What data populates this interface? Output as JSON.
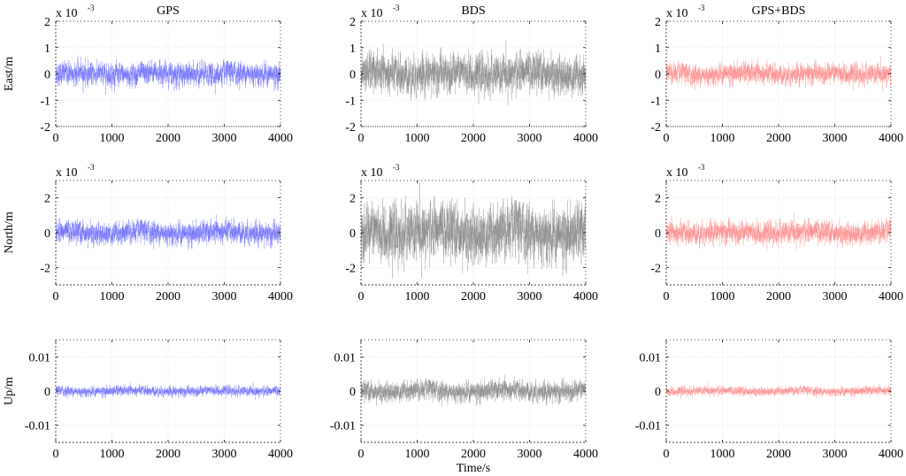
{
  "chart_data": {
    "type": "line",
    "xlabel": "Time/s",
    "columns": [
      {
        "title": "GPS",
        "color": "#6f6fff"
      },
      {
        "title": "BDS",
        "color": "#8a8a8a"
      },
      {
        "title": "GPS+BDS",
        "color": "#ff8c8c"
      }
    ],
    "rows": [
      {
        "ylabel": "East/m",
        "ylim": [
          -0.002,
          0.002
        ],
        "exponent_label": "x 10",
        "exponent": "-3",
        "yticks": [
          -0.002,
          -0.001,
          0,
          0.001,
          0.002
        ],
        "ytick_labels": [
          "-2",
          "-1",
          "0",
          "1",
          "2"
        ],
        "noise_std": [
          0.00027,
          0.00045,
          0.00024
        ]
      },
      {
        "ylabel": "North/m",
        "ylim": [
          -0.003,
          0.003
        ],
        "exponent_label": "x 10",
        "exponent": "-3",
        "yticks": [
          -0.002,
          0,
          0.002
        ],
        "ytick_labels": [
          "-2",
          "0",
          "2"
        ],
        "noise_std": [
          0.0004,
          0.001,
          0.0004
        ]
      },
      {
        "ylabel": "Up/m",
        "ylim": [
          -0.015,
          0.015
        ],
        "exponent_label": "",
        "exponent": "",
        "yticks": [
          -0.01,
          0,
          0.01
        ],
        "ytick_labels": [
          "-0.01",
          "0",
          "0.01"
        ],
        "noise_std": [
          0.0009,
          0.0018,
          0.0008
        ]
      }
    ],
    "xlim": [
      0,
      4000
    ],
    "xticks": [
      0,
      1000,
      2000,
      3000,
      4000
    ],
    "xtick_labels": [
      "0",
      "1000",
      "2000",
      "3000",
      "4000"
    ],
    "grid": true,
    "n_samples": 4000
  }
}
